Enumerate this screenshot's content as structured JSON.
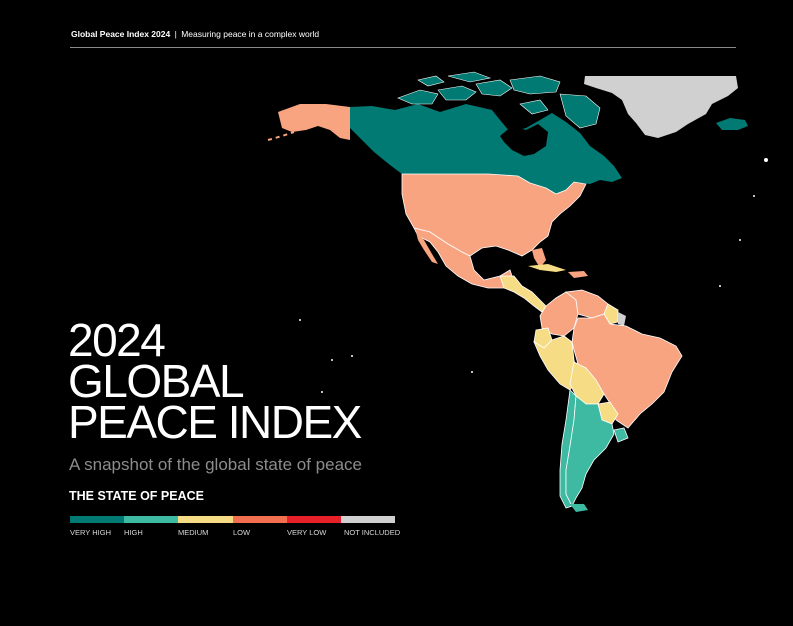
{
  "header": {
    "report_name": "Global Peace Index 2024",
    "separator": "|",
    "tagline": "Measuring peace in a complex world"
  },
  "title": {
    "line1": "2024",
    "line2": "GLOBAL",
    "line3": "PEACE INDEX"
  },
  "subtitle": "A snapshot of the global state of peace",
  "legend": {
    "title": "THE STATE OF PEACE",
    "categories": [
      {
        "label": "VERY HIGH",
        "color": "#007a73"
      },
      {
        "label": "HIGH",
        "color": "#3dbaa1"
      },
      {
        "label": "MEDIUM",
        "color": "#f7dc86"
      },
      {
        "label": "LOW",
        "color": "#f27050"
      },
      {
        "label": "VERY LOW",
        "color": "#e8202a"
      },
      {
        "label": "NOT INCLUDED",
        "color": "#d0d0d0"
      }
    ]
  },
  "map": {
    "regions_shown": "Americas",
    "classification": {
      "Canada": "VERY HIGH",
      "Greenland": "NOT INCLUDED",
      "Iceland": "VERY HIGH",
      "Alaska (United States)": "LOW",
      "United States": "LOW",
      "Mexico": "LOW",
      "Central America": "MEDIUM",
      "Cuba": "MEDIUM",
      "Colombia": "LOW",
      "Venezuela": "LOW",
      "Guyana": "MEDIUM",
      "French Guiana": "NOT INCLUDED",
      "Ecuador": "MEDIUM",
      "Peru": "MEDIUM",
      "Bolivia": "MEDIUM",
      "Paraguay": "MEDIUM",
      "Brazil": "LOW",
      "Chile": "HIGH",
      "Argentina": "HIGH",
      "Uruguay": "HIGH"
    }
  }
}
